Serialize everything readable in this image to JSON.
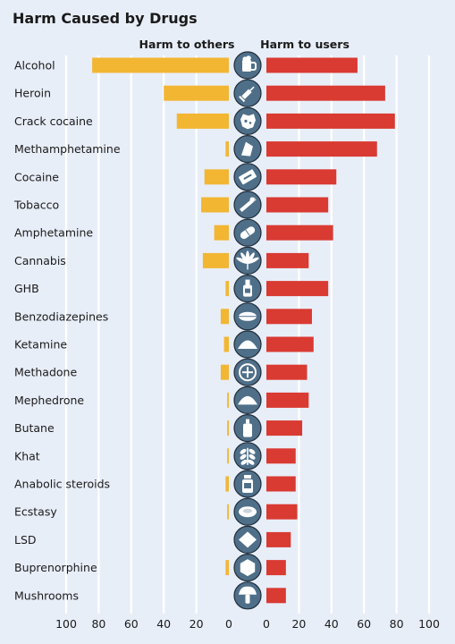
{
  "chart_data": {
    "type": "bar",
    "title": "Harm Caused by Drugs",
    "panels": [
      {
        "label": "Harm to others",
        "side": "left"
      },
      {
        "label": "Harm to users",
        "side": "right"
      }
    ],
    "categories": [
      "Alcohol",
      "Heroin",
      "Crack cocaine",
      "Methamphetamine",
      "Cocaine",
      "Tobacco",
      "Amphetamine",
      "Cannabis",
      "GHB",
      "Benzodiazepines",
      "Ketamine",
      "Methadone",
      "Mephedrone",
      "Butane",
      "Khat",
      "Anabolic steroids",
      "Ecstasy",
      "LSD",
      "Buprenorphine",
      "Mushrooms"
    ],
    "icons": [
      "beer-mug-icon",
      "syringe-icon",
      "crack-rock-icon",
      "meth-crystal-icon",
      "razor-blade-icon",
      "cigarette-icon",
      "capsule-icon",
      "cannabis-leaf-icon",
      "bottle-icon",
      "tablet-icon",
      "powder-pile-icon",
      "scored-pill-icon",
      "powder-pile-icon",
      "aerosol-can-icon",
      "khat-leaves-icon",
      "medicine-bottle-icon",
      "ecstasy-pill-icon",
      "blotter-diamond-icon",
      "hexagon-pill-icon",
      "mushroom-icon"
    ],
    "series": [
      {
        "name": "Harm to others",
        "values": [
          84,
          40,
          32,
          2,
          15,
          17,
          9,
          16,
          2,
          5,
          3,
          5,
          1,
          1,
          1,
          2,
          1,
          0,
          2,
          0
        ]
      },
      {
        "name": "Harm to users",
        "values": [
          56,
          73,
          79,
          68,
          43,
          38,
          41,
          26,
          38,
          28,
          29,
          25,
          26,
          22,
          18,
          18,
          19,
          15,
          12,
          12
        ]
      }
    ],
    "colors": {
      "others": "#f2b633",
      "users": "#d93a32",
      "icon_fill": "#4f6f89",
      "icon_glyph": "#ffffff",
      "grid": "#ffffff",
      "background": "#e8eef8"
    },
    "xlim": [
      0,
      100
    ],
    "ticks": [
      0,
      20,
      40,
      60,
      80,
      100
    ],
    "grid": true
  }
}
